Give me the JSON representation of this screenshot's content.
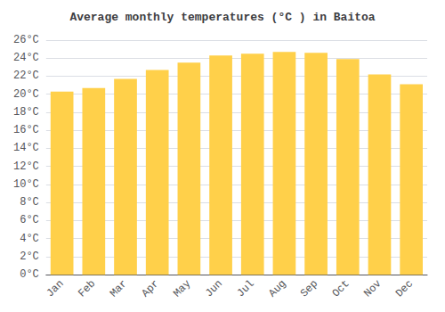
{
  "chart_data": {
    "type": "bar",
    "title": "Average monthly temperatures (°C ) in Baitoa",
    "categories": [
      "Jan",
      "Feb",
      "Mar",
      "Apr",
      "May",
      "Jun",
      "Jul",
      "Aug",
      "Sep",
      "Oct",
      "Nov",
      "Dec"
    ],
    "values": [
      20.3,
      20.7,
      21.7,
      22.7,
      23.5,
      24.3,
      24.5,
      24.7,
      24.6,
      23.9,
      22.2,
      21.1
    ],
    "color": "#FFD04A",
    "ylim": [
      0,
      26
    ],
    "yticks": [
      {
        "value": 0,
        "label": "0°C"
      },
      {
        "value": 2,
        "label": "2°C"
      },
      {
        "value": 4,
        "label": "4°C"
      },
      {
        "value": 6,
        "label": "6°C"
      },
      {
        "value": 8,
        "label": "8°C"
      },
      {
        "value": 10,
        "label": "10°C"
      },
      {
        "value": 12,
        "label": "12°C"
      },
      {
        "value": 14,
        "label": "14°C"
      },
      {
        "value": 16,
        "label": "16°C"
      },
      {
        "value": 18,
        "label": "18°C"
      },
      {
        "value": 20,
        "label": "20°C"
      },
      {
        "value": 22,
        "label": "22°C"
      },
      {
        "value": 24,
        "label": "24°C"
      },
      {
        "value": 26,
        "label": "26°C"
      }
    ],
    "grid": true
  }
}
